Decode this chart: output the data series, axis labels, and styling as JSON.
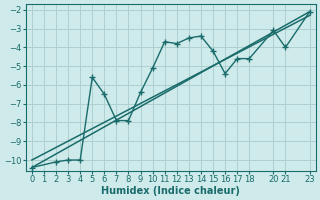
{
  "xlabel": "Humidex (Indice chaleur)",
  "background_color": "#ceeaea",
  "line_color": "#1a6b6b",
  "grid_color": "#aed0d0",
  "xlim": [
    -0.5,
    23.5
  ],
  "ylim": [
    -10.6,
    -1.7
  ],
  "xticks": [
    0,
    1,
    2,
    3,
    4,
    5,
    6,
    7,
    8,
    9,
    10,
    11,
    12,
    13,
    14,
    15,
    16,
    17,
    18,
    20,
    21,
    23
  ],
  "yticks": [
    -2,
    -3,
    -4,
    -5,
    -6,
    -7,
    -8,
    -9,
    -10
  ],
  "series1_x": [
    0,
    2,
    3,
    4,
    5,
    6,
    7,
    8,
    9,
    10,
    11,
    12,
    13,
    14,
    15,
    16,
    17,
    18,
    20,
    21,
    23
  ],
  "series1_y": [
    -10.4,
    -10.1,
    -10.0,
    -10.0,
    -5.6,
    -6.5,
    -7.9,
    -7.9,
    -6.4,
    -5.1,
    -3.7,
    -3.8,
    -3.5,
    -3.4,
    -4.2,
    -5.4,
    -4.6,
    -4.6,
    -3.1,
    -4.0,
    -2.1
  ],
  "series2_x": [
    0,
    23
  ],
  "series2_y": [
    -10.4,
    -2.1
  ],
  "series3_x": [
    0,
    23
  ],
  "series3_y": [
    -10.0,
    -2.3
  ]
}
